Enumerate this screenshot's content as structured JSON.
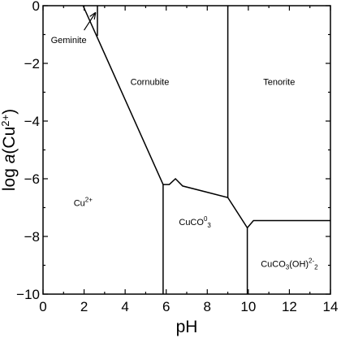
{
  "chart_data": {
    "type": "phase-diagram",
    "xlabel": "pH",
    "ylabel": "log a(Cu2+)",
    "xlim": [
      0,
      14
    ],
    "ylim": [
      -10,
      0
    ],
    "x_ticks": [
      0,
      2,
      4,
      6,
      8,
      10,
      12,
      14
    ],
    "y_ticks": [
      0,
      -2,
      -4,
      -6,
      -8,
      -10
    ],
    "regions": [
      {
        "name": "Geminite",
        "label_x": 1.25,
        "label_y": -1.3
      },
      {
        "name": "Cornubite",
        "label_x": 5.2,
        "label_y": -2.75
      },
      {
        "name": "Tenorite",
        "label_x": 11.5,
        "label_y": -2.75
      },
      {
        "name": "Cu2+",
        "label_x": 1.95,
        "label_y": -6.95
      },
      {
        "name": "CuCO3(0)",
        "label_x": 7.4,
        "label_y": -7.6
      },
      {
        "name": "CuCO3(OH)2(2-)",
        "label_x": 12.0,
        "label_y": -9.05
      }
    ],
    "boundaries": [
      {
        "name": "cu-cornubite",
        "points": [
          [
            1.95,
            0
          ],
          [
            5.85,
            -6.2
          ],
          [
            6.15,
            -6.2
          ],
          [
            6.45,
            -6.0
          ],
          [
            6.8,
            -6.25
          ],
          [
            9.0,
            -6.65
          ],
          [
            9.95,
            -7.7
          ],
          [
            10.25,
            -7.45
          ],
          [
            14,
            -7.45
          ]
        ]
      },
      {
        "name": "geminite-right",
        "points": [
          [
            2.65,
            0
          ],
          [
            2.65,
            -1.05
          ]
        ]
      },
      {
        "name": "cornubite-tenorite",
        "points": [
          [
            9.0,
            0
          ],
          [
            9.0,
            -6.65
          ]
        ]
      },
      {
        "name": "cuco3-lower",
        "points": [
          [
            5.85,
            -6.2
          ],
          [
            5.85,
            -10
          ]
        ]
      },
      {
        "name": "tenorite-cuco3oh",
        "points": [
          [
            9.95,
            -7.7
          ],
          [
            9.95,
            -10
          ]
        ]
      }
    ],
    "arrow": {
      "from": [
        2.0,
        -0.85
      ],
      "to": [
        2.55,
        -0.25
      ]
    }
  }
}
